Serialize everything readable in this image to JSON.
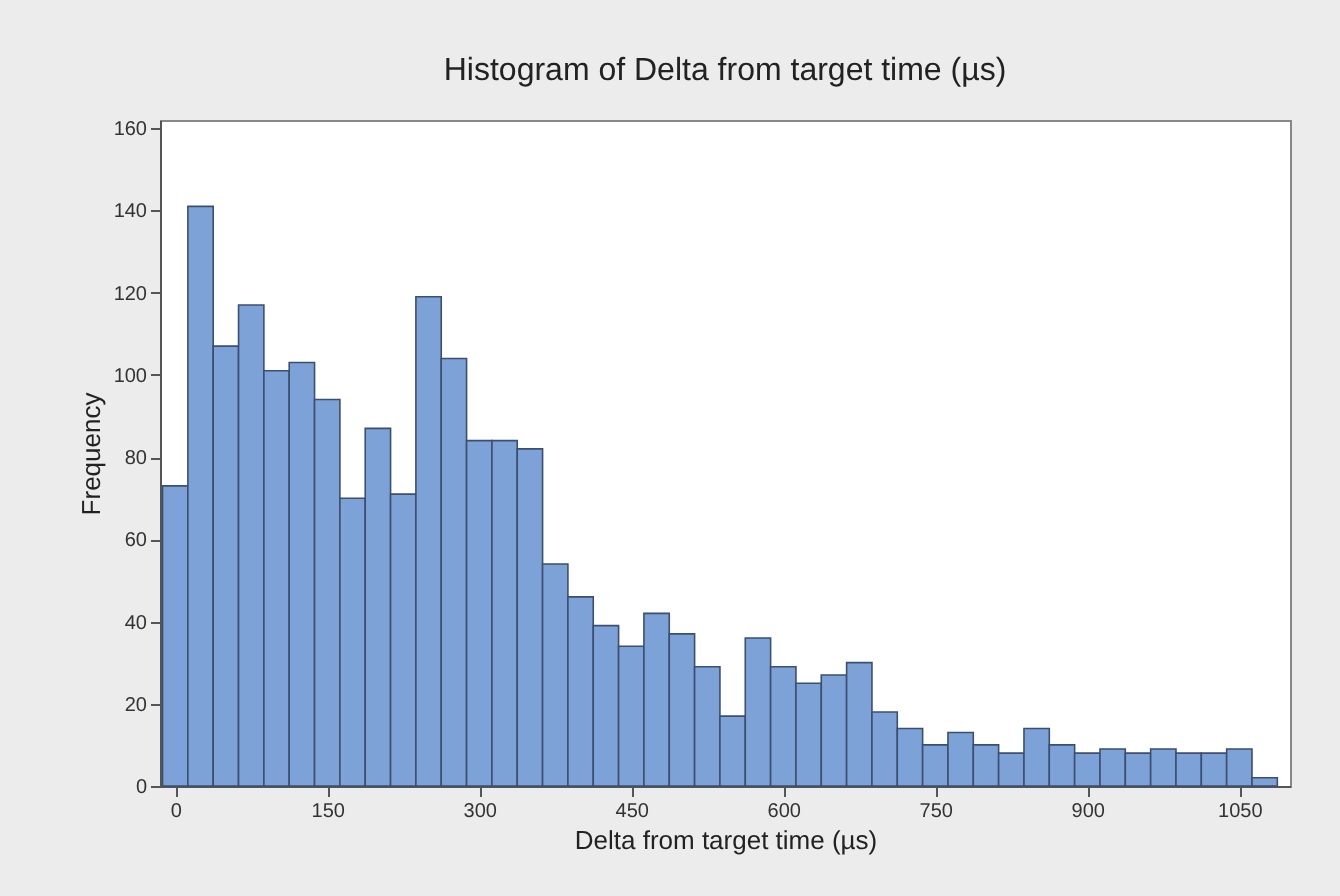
{
  "chart_data": {
    "type": "histogram",
    "title": "Histogram of Delta from target time (µs)",
    "xlabel": "Delta from target time (µs)",
    "ylabel": "Frequency",
    "bins": [
      -12.5,
      12.5,
      37.5,
      62.5,
      87.5,
      112.5,
      137.5,
      162.5,
      187.5,
      212.5,
      237.5,
      262.5,
      287.5,
      312.5,
      337.5,
      362.5,
      387.5,
      412.5,
      437.5,
      462.5,
      487.5,
      512.5,
      537.5,
      562.5,
      587.5,
      612.5,
      637.5,
      662.5,
      687.5,
      712.5,
      737.5,
      762.5,
      787.5,
      812.5,
      837.5,
      862.5,
      887.5,
      912.5,
      937.5,
      962.5,
      987.5,
      1012.5,
      1037.5,
      1062.5,
      1087.5
    ],
    "values": [
      73,
      141,
      107,
      117,
      101,
      103,
      94,
      70,
      87,
      71,
      119,
      104,
      84,
      84,
      82,
      54,
      46,
      39,
      34,
      42,
      37,
      29,
      17,
      36,
      29,
      25,
      27,
      30,
      18,
      14,
      10,
      13,
      10,
      8,
      14,
      10,
      8,
      9,
      8,
      9,
      8,
      8,
      9,
      2
    ],
    "color": "#7da2d8",
    "xlim": [
      -15,
      1100
    ],
    "xticks": [
      0,
      150,
      300,
      450,
      600,
      750,
      900,
      1050
    ],
    "ylim": [
      0,
      162
    ],
    "yticks": [
      0,
      20,
      40,
      60,
      80,
      100,
      120,
      140,
      160
    ]
  }
}
